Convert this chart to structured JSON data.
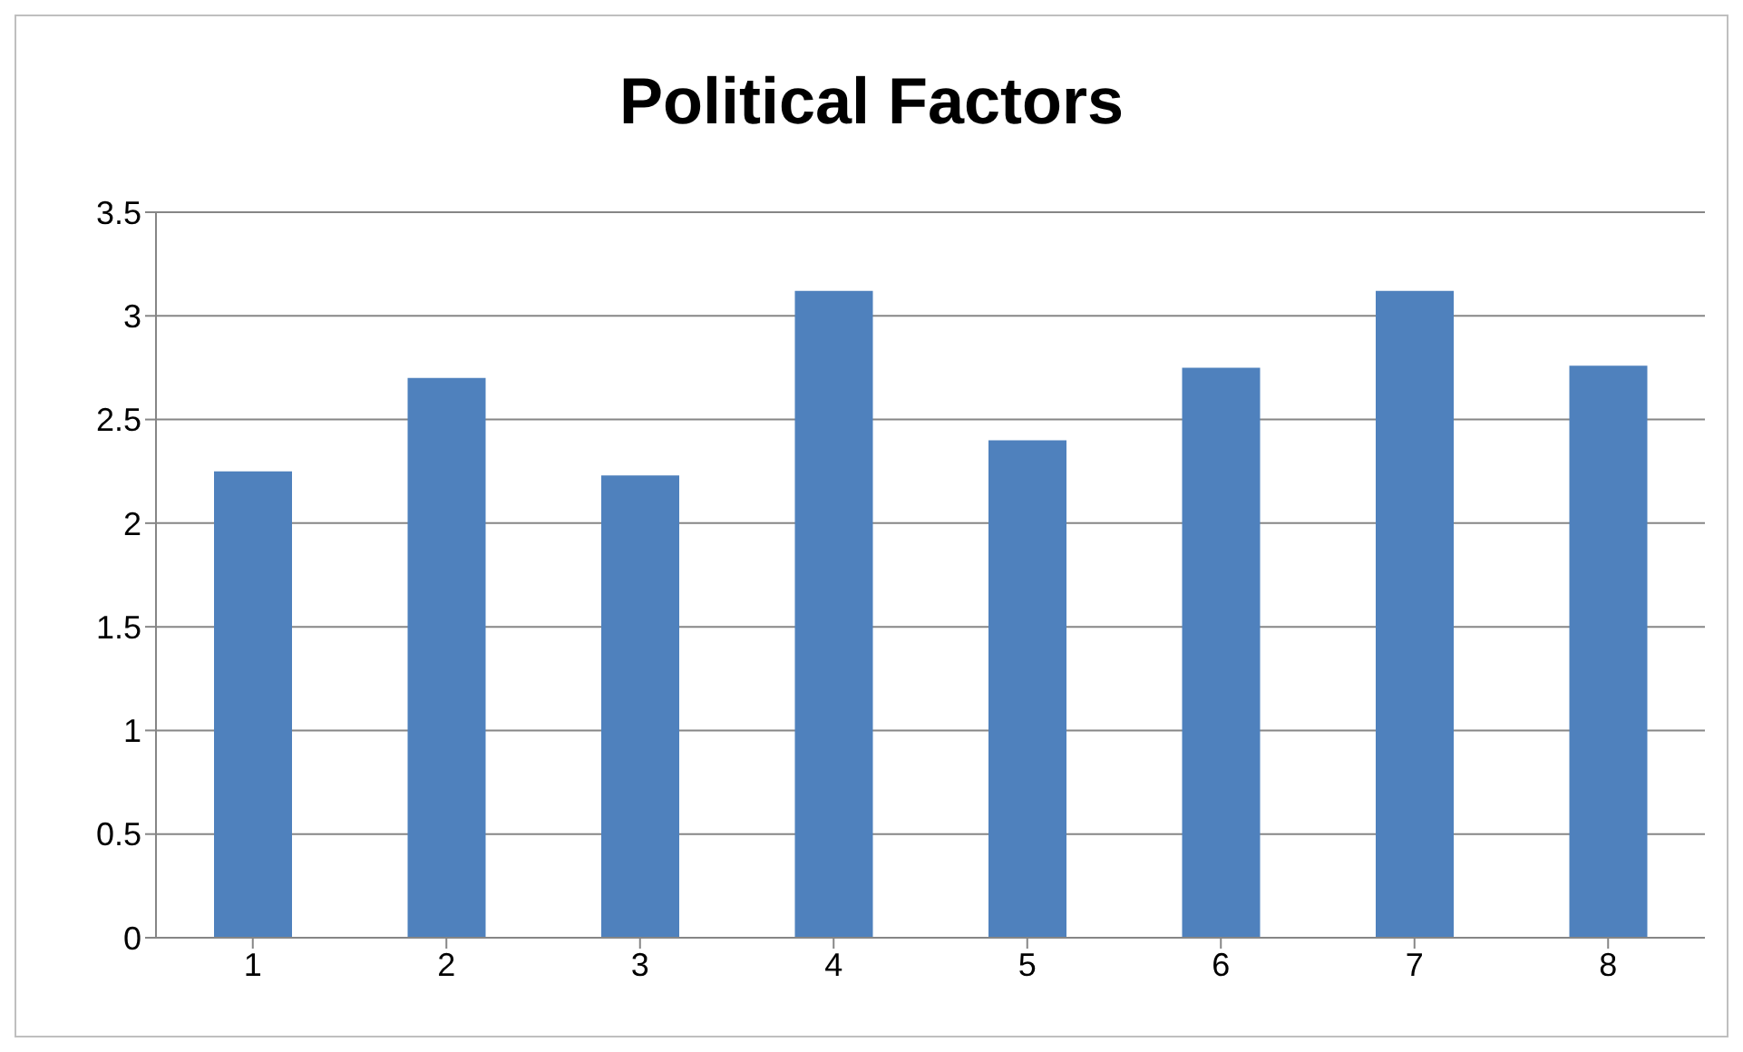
{
  "chart_data": {
    "type": "bar",
    "title": "Political Factors",
    "categories": [
      "1",
      "2",
      "3",
      "4",
      "5",
      "6",
      "7",
      "8"
    ],
    "values": [
      2.25,
      2.7,
      2.23,
      3.12,
      2.4,
      2.75,
      3.12,
      2.76
    ],
    "color": "#4f81bd",
    "ylim": [
      0,
      3.5
    ],
    "yticks": [
      0,
      0.5,
      1,
      1.5,
      2,
      2.5,
      3,
      3.5
    ],
    "grid": "y"
  }
}
